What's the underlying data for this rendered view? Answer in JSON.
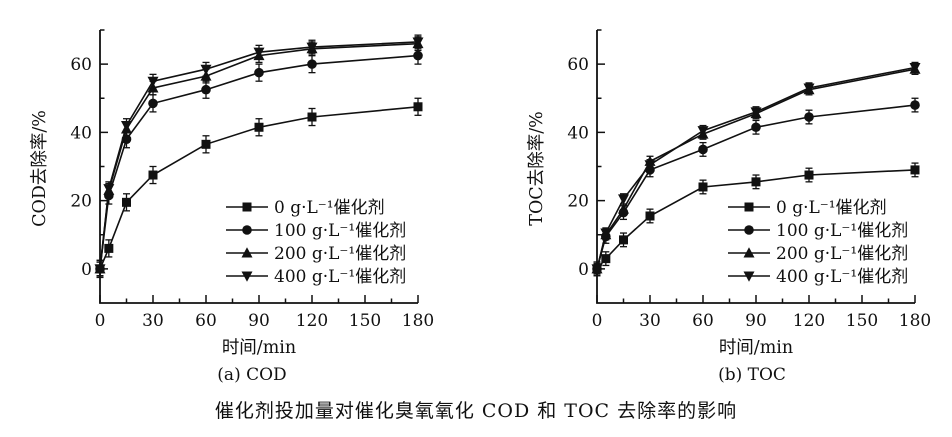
{
  "figure_title": "催化剂投加量对催化臭氧氧化 COD 和 TOC 去除率的影响",
  "colors": {
    "background": "#ffffff",
    "ink": "#111111"
  },
  "chart_data": [
    {
      "type": "line",
      "panel": "a",
      "caption": "(a) COD",
      "title": "",
      "xlabel": "时间/min",
      "ylabel": "COD去除率/%",
      "x": [
        0,
        5,
        15,
        30,
        60,
        90,
        120,
        180
      ],
      "xlim": [
        0,
        180
      ],
      "ylim": [
        -10,
        70
      ],
      "xticks": [
        0,
        30,
        60,
        90,
        120,
        150,
        180
      ],
      "yticks": [
        0,
        20,
        40,
        60
      ],
      "grid": false,
      "legend_position": "lower-right",
      "color": "#111111",
      "series": [
        {
          "name": "0 g·L⁻¹催化剂",
          "marker": "square",
          "values": [
            0,
            6,
            19.5,
            27.5,
            36.5,
            41.5,
            44.5,
            47.5
          ],
          "error": 2.5
        },
        {
          "name": "100 g·L⁻¹催化剂",
          "marker": "circle",
          "values": [
            0,
            21.5,
            38,
            48.5,
            52.5,
            57.5,
            60,
            62.5
          ],
          "error": 2.5
        },
        {
          "name": "200 g·L⁻¹催化剂",
          "marker": "triangle-up",
          "values": [
            0,
            23,
            41,
            53,
            56.5,
            62.5,
            64.5,
            66
          ],
          "error": 2
        },
        {
          "name": "400 g·L⁻¹催化剂",
          "marker": "triangle-down",
          "values": [
            0,
            23.5,
            42,
            55,
            58.5,
            63.5,
            65,
            66.5
          ],
          "error": 2
        }
      ]
    },
    {
      "type": "line",
      "panel": "b",
      "caption": "(b) TOC",
      "title": "",
      "xlabel": "时间/min",
      "ylabel": "TOC去除率/%",
      "x": [
        0,
        5,
        15,
        30,
        60,
        90,
        120,
        180
      ],
      "xlim": [
        0,
        180
      ],
      "ylim": [
        -10,
        70
      ],
      "xticks": [
        0,
        30,
        60,
        90,
        120,
        150,
        180
      ],
      "yticks": [
        0,
        20,
        40,
        60
      ],
      "grid": false,
      "legend_position": "lower-right",
      "color": "#111111",
      "series": [
        {
          "name": "0 g·L⁻¹催化剂",
          "marker": "square",
          "values": [
            0,
            3,
            8.5,
            15.5,
            24,
            25.5,
            27.5,
            29
          ],
          "error": 2
        },
        {
          "name": "100 g·L⁻¹催化剂",
          "marker": "circle",
          "values": [
            0,
            9.5,
            16.5,
            29,
            35,
            41.5,
            44.5,
            48
          ],
          "error": 2
        },
        {
          "name": "200 g·L⁻¹催化剂",
          "marker": "triangle-up",
          "values": [
            0,
            10,
            17.5,
            31.5,
            39.5,
            45.5,
            52.5,
            58.5
          ],
          "error": 1.5
        },
        {
          "name": "400 g·L⁻¹催化剂",
          "marker": "triangle-down",
          "values": [
            0,
            10.5,
            20.5,
            30.5,
            40.5,
            46,
            53,
            59
          ],
          "error": 1.5
        }
      ]
    }
  ]
}
